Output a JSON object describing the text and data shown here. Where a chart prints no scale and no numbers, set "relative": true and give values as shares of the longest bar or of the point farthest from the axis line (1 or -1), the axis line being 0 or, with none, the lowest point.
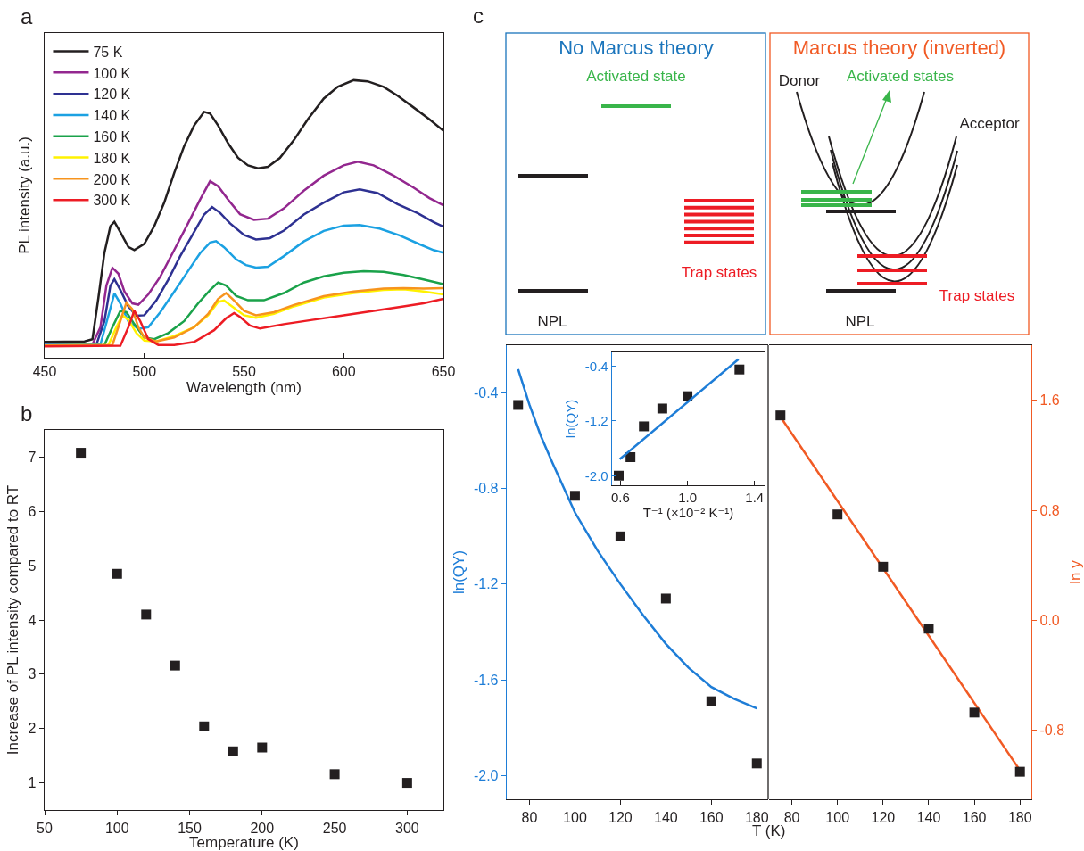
{
  "chart_data": [
    {
      "type": "line",
      "xlabel": "Wavelength (nm)",
      "ylabel": "PL intensity (a.u.)",
      "relative": true,
      "xlim": [
        450,
        650
      ],
      "xticks": [
        450,
        500,
        550,
        600,
        650
      ],
      "tick_labels": "x",
      "legend": "top left",
      "grid": false,
      "annotations": [
        "a"
      ],
      "series": [
        {
          "name": "75 K",
          "color": "#231f20",
          "x": [
            450,
            470,
            474,
            477,
            480,
            483,
            485,
            488,
            492,
            495,
            500,
            505,
            510,
            515,
            520,
            525,
            530,
            533,
            537,
            542,
            547,
            552,
            557,
            562,
            568,
            575,
            582,
            590,
            597,
            605,
            612,
            620,
            627,
            635,
            643,
            650
          ],
          "values": [
            0.057,
            0.059,
            0.067,
            0.217,
            0.378,
            0.474,
            0.49,
            0.452,
            0.399,
            0.388,
            0.41,
            0.474,
            0.559,
            0.666,
            0.763,
            0.837,
            0.886,
            0.88,
            0.837,
            0.773,
            0.72,
            0.693,
            0.682,
            0.688,
            0.72,
            0.784,
            0.859,
            0.934,
            0.976,
            1.0,
            0.996,
            0.976,
            0.944,
            0.902,
            0.859,
            0.818
          ]
        },
        {
          "name": "100 K",
          "color": "#93278f",
          "x": [
            450,
            474,
            478,
            481,
            484,
            487,
            490,
            494,
            497,
            502,
            508,
            515,
            522,
            528,
            533,
            537,
            542,
            548,
            555,
            562,
            570,
            580,
            590,
            600,
            607,
            615,
            625,
            635,
            643,
            650
          ],
          "values": [
            0.046,
            0.048,
            0.11,
            0.26,
            0.324,
            0.303,
            0.239,
            0.196,
            0.191,
            0.228,
            0.292,
            0.388,
            0.485,
            0.57,
            0.636,
            0.618,
            0.57,
            0.517,
            0.497,
            0.501,
            0.538,
            0.602,
            0.656,
            0.693,
            0.706,
            0.693,
            0.656,
            0.613,
            0.575,
            0.549
          ]
        },
        {
          "name": "120 K",
          "color": "#2e3192",
          "x": [
            450,
            476,
            480,
            483,
            485,
            488,
            492,
            496,
            500,
            506,
            512,
            518,
            524,
            530,
            534,
            538,
            543,
            550,
            556,
            563,
            570,
            580,
            590,
            600,
            608,
            617,
            627,
            637,
            645,
            650
          ],
          "values": [
            0.046,
            0.048,
            0.132,
            0.26,
            0.283,
            0.244,
            0.185,
            0.151,
            0.153,
            0.206,
            0.281,
            0.366,
            0.441,
            0.516,
            0.543,
            0.522,
            0.484,
            0.442,
            0.426,
            0.431,
            0.458,
            0.516,
            0.559,
            0.596,
            0.607,
            0.593,
            0.553,
            0.521,
            0.489,
            0.472
          ]
        },
        {
          "name": "140 K",
          "color": "#1ba1e2",
          "x": [
            450,
            478,
            482,
            485,
            488,
            492,
            497,
            502,
            508,
            515,
            522,
            528,
            533,
            536,
            540,
            546,
            551,
            556,
            562,
            570,
            580,
            590,
            600,
            608,
            618,
            628,
            638,
            645,
            650
          ],
          "values": [
            0.046,
            0.048,
            0.152,
            0.232,
            0.195,
            0.131,
            0.104,
            0.11,
            0.164,
            0.238,
            0.313,
            0.377,
            0.415,
            0.42,
            0.398,
            0.355,
            0.334,
            0.325,
            0.328,
            0.366,
            0.419,
            0.457,
            0.476,
            0.478,
            0.465,
            0.441,
            0.409,
            0.388,
            0.378
          ]
        },
        {
          "name": "160 K",
          "color": "#1aa24a",
          "x": [
            450,
            480,
            484,
            488,
            491,
            495,
            500,
            505,
            512,
            520,
            527,
            533,
            537,
            541,
            546,
            552,
            560,
            570,
            580,
            590,
            600,
            610,
            620,
            630,
            640,
            650
          ],
          "values": [
            0.044,
            0.046,
            0.11,
            0.169,
            0.164,
            0.121,
            0.073,
            0.067,
            0.089,
            0.132,
            0.196,
            0.244,
            0.271,
            0.26,
            0.223,
            0.207,
            0.207,
            0.233,
            0.271,
            0.293,
            0.306,
            0.312,
            0.309,
            0.298,
            0.282,
            0.265
          ]
        },
        {
          "name": "180 K",
          "color": "#fff200",
          "x": [
            450,
            482,
            486,
            489,
            492,
            496,
            500,
            506,
            515,
            525,
            532,
            537,
            540,
            544,
            550,
            556,
            565,
            575,
            590,
            605,
            620,
            630,
            640,
            650
          ],
          "values": [
            0.044,
            0.046,
            0.11,
            0.153,
            0.137,
            0.089,
            0.062,
            0.059,
            0.078,
            0.11,
            0.153,
            0.201,
            0.206,
            0.185,
            0.153,
            0.144,
            0.158,
            0.185,
            0.217,
            0.233,
            0.244,
            0.247,
            0.239,
            0.228
          ]
        },
        {
          "name": "200 K",
          "color": "#f7941d",
          "x": [
            450,
            484,
            488,
            491,
            494,
            497,
            500,
            506,
            515,
            525,
            532,
            537,
            541,
            545,
            550,
            556,
            565,
            575,
            590,
            605,
            620,
            630,
            640,
            650
          ],
          "values": [
            0.044,
            0.046,
            0.132,
            0.198,
            0.175,
            0.11,
            0.073,
            0.059,
            0.073,
            0.11,
            0.158,
            0.212,
            0.233,
            0.206,
            0.169,
            0.153,
            0.164,
            0.19,
            0.222,
            0.239,
            0.249,
            0.251,
            0.249,
            0.251
          ]
        },
        {
          "name": "300 K",
          "color": "#ed1c24",
          "x": [
            450,
            488,
            492,
            495,
            498,
            502,
            507,
            515,
            525,
            535,
            541,
            545,
            548,
            553,
            558,
            570,
            585,
            600,
            615,
            630,
            640,
            650
          ],
          "values": [
            0.041,
            0.043,
            0.11,
            0.169,
            0.131,
            0.067,
            0.046,
            0.046,
            0.057,
            0.099,
            0.142,
            0.161,
            0.147,
            0.116,
            0.105,
            0.121,
            0.137,
            0.153,
            0.169,
            0.185,
            0.196,
            0.212
          ]
        }
      ]
    },
    {
      "type": "scatter",
      "xlabel": "Temperature (K)",
      "ylabel": "Increase of PL intensity compared to RT",
      "xlim": [
        50,
        325
      ],
      "xticks": [
        50,
        100,
        150,
        200,
        250,
        300
      ],
      "ylim": [
        0.5,
        7.5
      ],
      "yticks": [
        1,
        2,
        3,
        4,
        5,
        6,
        7
      ],
      "marker": "square",
      "grid": false,
      "legend": false,
      "annotations": [
        "b"
      ],
      "x": [
        75,
        100,
        120,
        140,
        160,
        180,
        200,
        250,
        300
      ],
      "values": [
        7.08,
        4.85,
        4.1,
        3.16,
        2.04,
        1.58,
        1.65,
        1.16,
        1.0
      ],
      "color": "#231f20"
    },
    {
      "type": "other",
      "title": "No Marcus theory",
      "annotations": [
        "c",
        "Activated state",
        "Trap states",
        "NPL"
      ]
    },
    {
      "type": "other",
      "title": "Marcus theory (inverted)",
      "annotations": [
        "Donor",
        "Activated states",
        "Acceptor",
        "Trap states",
        "NPL"
      ]
    },
    {
      "type": "scatter",
      "xlabel": "T (K)",
      "ylabel": "ln(QY)",
      "xlim": [
        70,
        185
      ],
      "xticks": [
        80,
        100,
        120,
        140,
        160,
        180
      ],
      "ylim": [
        -2.1,
        -0.2
      ],
      "yticks": [
        -0.4,
        -0.8,
        -1.2,
        -1.6,
        {
          "value": -2.0,
          "label": "-2.0"
        }
      ],
      "grid": false,
      "legend": false,
      "series": [
        {
          "type": "scatter",
          "marker": "square",
          "color": "#231f20",
          "x": [
            75,
            100,
            120,
            140,
            160,
            180
          ],
          "values": [
            -0.45,
            -0.83,
            -1.0,
            -1.26,
            -1.69,
            -1.95
          ]
        },
        {
          "type": "line",
          "color": "#1e7dd7",
          "x": [
            75,
            80,
            85,
            90,
            100,
            110,
            120,
            130,
            140,
            150,
            160,
            170,
            180
          ],
          "values": [
            -0.3,
            -0.45,
            -0.58,
            -0.69,
            -0.9,
            -1.06,
            -1.2,
            -1.33,
            -1.45,
            -1.55,
            -1.63,
            -1.68,
            -1.72
          ]
        }
      ]
    },
    {
      "type": "scatter",
      "xlabel": "T⁻¹ (×10⁻² K⁻¹)",
      "ylabel": "ln(QY)",
      "xlim": [
        0.55,
        1.46
      ],
      "xticks": [
        0.6,
        {
          "value": 1.0,
          "label": "1.0"
        },
        1.4
      ],
      "ylim": [
        -2.14,
        -0.2
      ],
      "yticks": [
        -0.4,
        -1.2,
        {
          "value": -2.0,
          "label": "-2.0"
        }
      ],
      "grid": false,
      "legend": false,
      "series": [
        {
          "type": "scatter",
          "marker": "square",
          "color": "#231f20",
          "x": [
            0.59,
            0.66,
            0.74,
            0.85,
            1.0,
            1.31
          ],
          "values": [
            -2.0,
            -1.73,
            -1.28,
            -1.02,
            -0.84,
            -0.45
          ]
        },
        {
          "type": "line",
          "color": "#1e7dd7",
          "x": [
            0.596,
            1.304
          ],
          "values": [
            -1.76,
            -0.3
          ]
        }
      ]
    },
    {
      "type": "scatter",
      "y2label": "ln y",
      "xlim": [
        70,
        185
      ],
      "xticks": [
        80,
        100,
        120,
        140,
        160,
        180
      ],
      "y2lim": [
        -1.3,
        2.0
      ],
      "y2ticks": [
        {
          "value": -0.8,
          "label": "-0.8"
        },
        {
          "value": 0.0,
          "label": "0.0"
        },
        0.8,
        1.6
      ],
      "grid": false,
      "legend": false,
      "series": [
        {
          "type": "line",
          "axis": "y2",
          "color": "#f15a24",
          "x": [
            75,
            180
          ],
          "values": [
            1.48,
            -1.09
          ]
        },
        {
          "type": "scatter",
          "axis": "y2",
          "marker": "square",
          "color": "#231f20",
          "x": [
            75,
            100,
            120,
            140,
            160,
            180
          ],
          "values": [
            1.49,
            0.77,
            0.39,
            -0.06,
            -0.67,
            -1.1
          ]
        }
      ]
    }
  ]
}
